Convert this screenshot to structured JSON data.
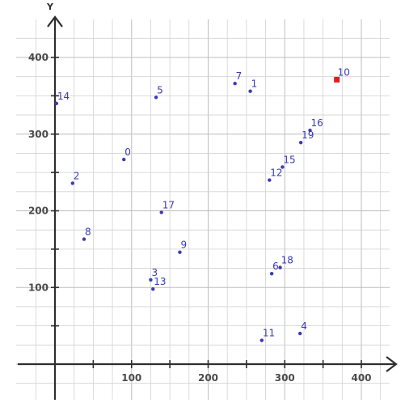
{
  "chart_data": {
    "type": "scatter",
    "title": "",
    "xlabel": "",
    "ylabel": "Y",
    "xlim": [
      -30,
      450
    ],
    "ylim": [
      -30,
      455
    ],
    "x_ticks": [
      100,
      200,
      300,
      400
    ],
    "y_ticks": [
      100,
      200,
      300,
      400
    ],
    "grid": true,
    "minor_grid_step": 25,
    "marker_color": "#3a3ab8",
    "highlight_color": "#e02020",
    "points": [
      {
        "label": "0",
        "x": 90,
        "y": 267
      },
      {
        "label": "1",
        "x": 255,
        "y": 356
      },
      {
        "label": "2",
        "x": 23,
        "y": 236
      },
      {
        "label": "3",
        "x": 125,
        "y": 110
      },
      {
        "label": "4",
        "x": 320,
        "y": 40
      },
      {
        "label": "5",
        "x": 132,
        "y": 348
      },
      {
        "label": "6",
        "x": 283,
        "y": 118
      },
      {
        "label": "7",
        "x": 235,
        "y": 366
      },
      {
        "label": "8",
        "x": 38,
        "y": 163
      },
      {
        "label": "9",
        "x": 163,
        "y": 146
      },
      {
        "label": "10",
        "x": 368,
        "y": 371,
        "highlight": true
      },
      {
        "label": "11",
        "x": 270,
        "y": 31
      },
      {
        "label": "12",
        "x": 280,
        "y": 240
      },
      {
        "label": "13",
        "x": 128,
        "y": 98
      },
      {
        "label": "14",
        "x": 2,
        "y": 340
      },
      {
        "label": "15",
        "x": 297,
        "y": 257
      },
      {
        "label": "16",
        "x": 333,
        "y": 305
      },
      {
        "label": "17",
        "x": 139,
        "y": 198
      },
      {
        "label": "18",
        "x": 294,
        "y": 126
      },
      {
        "label": "19",
        "x": 321,
        "y": 289
      }
    ]
  }
}
